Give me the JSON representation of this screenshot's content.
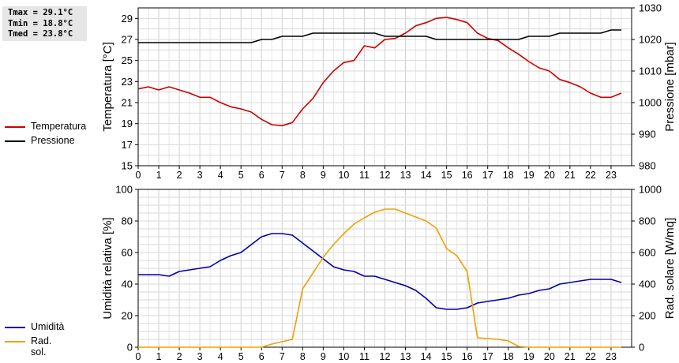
{
  "stats": {
    "tmax": "Tmax = 29.1°C",
    "tmin": "Tmin = 18.8°C",
    "tmed": "Tmed = 23.8°C"
  },
  "colors": {
    "temperatura": "#cc0000",
    "pressione": "#000000",
    "umidita": "#0000aa",
    "radsol": "#f0a000"
  },
  "legends": {
    "top": [
      {
        "label": "Temperatura",
        "color": "#cc0000"
      },
      {
        "label": "Pressione",
        "color": "#000000"
      }
    ],
    "bottom": [
      {
        "label": "Umidità",
        "color": "#0000aa"
      },
      {
        "label": "Rad. sol.",
        "color": "#f0a000"
      }
    ]
  },
  "chart_data": [
    {
      "type": "line",
      "ylabel": "Temperatura [°C]",
      "y2label": "Pressione [mbar]",
      "xlim": [
        0,
        24
      ],
      "ylim": [
        15,
        30
      ],
      "y2lim": [
        980,
        1030
      ],
      "xticks": [
        "0",
        "1",
        "2",
        "3",
        "4",
        "5",
        "6",
        "7",
        "8",
        "9",
        "10",
        "11",
        "12",
        "13",
        "14",
        "15",
        "16",
        "17",
        "18",
        "19",
        "20",
        "21",
        "22",
        "23"
      ],
      "yticks": [
        "15",
        "17",
        "19",
        "21",
        "23",
        "25",
        "27",
        "29"
      ],
      "y2ticks": [
        "980",
        "990",
        "1000",
        "1010",
        "1020",
        "1030"
      ],
      "grid": true,
      "legend": "left",
      "series": [
        {
          "name": "Temperatura",
          "axis": "left",
          "color": "#cc0000",
          "x": [
            0,
            0.5,
            1,
            1.5,
            2,
            2.5,
            3,
            3.5,
            4,
            4.5,
            5,
            5.5,
            6,
            6.5,
            7,
            7.5,
            8,
            8.5,
            9,
            9.5,
            10,
            10.5,
            11,
            11.5,
            12,
            12.5,
            13,
            13.5,
            14,
            14.5,
            15,
            15.5,
            16,
            16.5,
            17,
            17.5,
            18,
            18.5,
            19,
            19.5,
            20,
            20.5,
            21,
            21.5,
            22,
            22.5,
            23,
            23.5
          ],
          "values": [
            22.3,
            22.5,
            22.2,
            22.5,
            22.2,
            21.9,
            21.5,
            21.5,
            21.0,
            20.6,
            20.4,
            20.1,
            19.4,
            18.9,
            18.8,
            19.1,
            20.4,
            21.4,
            22.9,
            24.0,
            24.8,
            25.0,
            26.4,
            26.2,
            27.0,
            27.1,
            27.6,
            28.3,
            28.6,
            29.0,
            29.1,
            28.9,
            28.6,
            27.6,
            27.1,
            26.9,
            26.2,
            25.6,
            24.9,
            24.3,
            24.0,
            23.2,
            22.9,
            22.5,
            21.9,
            21.5,
            21.5,
            21.9
          ]
        },
        {
          "name": "Pressione",
          "axis": "right",
          "color": "#000000",
          "x": [
            0,
            0.5,
            1,
            1.5,
            2,
            2.5,
            3,
            3.5,
            4,
            4.5,
            5,
            5.5,
            6,
            6.5,
            7,
            7.5,
            8,
            8.5,
            9,
            9.5,
            10,
            10.5,
            11,
            11.5,
            12,
            12.5,
            13,
            13.5,
            14,
            14.5,
            15,
            15.5,
            16,
            16.5,
            17,
            17.5,
            18,
            18.5,
            19,
            19.5,
            20,
            20.5,
            21,
            21.5,
            22,
            22.5,
            23,
            23.5
          ],
          "values": [
            1019,
            1019,
            1019,
            1019,
            1019,
            1019,
            1019,
            1019,
            1019,
            1019,
            1019,
            1019,
            1020,
            1020,
            1021,
            1021,
            1021,
            1022,
            1022,
            1022,
            1022,
            1022,
            1022,
            1022,
            1021,
            1021,
            1021,
            1021,
            1021,
            1020,
            1020,
            1020,
            1020,
            1020,
            1020,
            1020,
            1020,
            1020,
            1021,
            1021,
            1021,
            1022,
            1022,
            1022,
            1022,
            1022,
            1023,
            1023
          ]
        }
      ]
    },
    {
      "type": "line",
      "ylabel": "Umidità relativa [%]",
      "y2label": "Rad. solare [W/mq]",
      "xlim": [
        0,
        24
      ],
      "ylim": [
        0,
        100
      ],
      "y2lim": [
        0,
        1000
      ],
      "xticks": [
        "0",
        "1",
        "2",
        "3",
        "4",
        "5",
        "6",
        "7",
        "8",
        "9",
        "10",
        "11",
        "12",
        "13",
        "14",
        "15",
        "16",
        "17",
        "18",
        "19",
        "20",
        "21",
        "22",
        "23"
      ],
      "yticks": [
        "0",
        "20",
        "40",
        "60",
        "80",
        "100"
      ],
      "y2ticks": [
        "0",
        "200",
        "400",
        "600",
        "800",
        "1000"
      ],
      "grid": true,
      "legend": "left",
      "series": [
        {
          "name": "Umidità",
          "axis": "left",
          "color": "#0000aa",
          "x": [
            0,
            0.5,
            1,
            1.5,
            2,
            2.5,
            3,
            3.5,
            4,
            4.5,
            5,
            5.5,
            6,
            6.5,
            7,
            7.5,
            8,
            8.5,
            9,
            9.5,
            10,
            10.5,
            11,
            11.5,
            12,
            12.5,
            13,
            13.5,
            14,
            14.5,
            15,
            15.5,
            16,
            16.5,
            17,
            17.5,
            18,
            18.5,
            19,
            19.5,
            20,
            20.5,
            21,
            21.5,
            22,
            22.5,
            23,
            23.5
          ],
          "values": [
            46,
            46,
            46,
            45,
            48,
            49,
            50,
            51,
            55,
            58,
            60,
            65,
            70,
            72,
            72,
            71,
            66,
            61,
            56,
            51,
            49,
            48,
            45,
            45,
            43,
            41,
            39,
            36,
            31,
            25,
            24,
            24,
            25,
            28,
            29,
            30,
            31,
            33,
            34,
            36,
            37,
            40,
            41,
            42,
            43,
            43,
            43,
            41
          ]
        },
        {
          "name": "Rad. sol.",
          "axis": "right",
          "color": "#f0a000",
          "x": [
            0,
            1,
            2,
            3,
            4,
            5,
            6,
            6.5,
            7,
            7.5,
            8,
            8.5,
            9,
            9.5,
            10,
            10.5,
            11,
            11.5,
            12,
            12.5,
            13,
            13.5,
            14,
            14.5,
            15,
            15.5,
            16,
            16.5,
            17,
            17.5,
            18,
            18.5,
            19,
            20,
            21,
            22,
            23,
            23.5
          ],
          "values": [
            0,
            0,
            0,
            0,
            0,
            0,
            0,
            20,
            35,
            50,
            370,
            470,
            570,
            650,
            720,
            780,
            820,
            855,
            875,
            875,
            850,
            825,
            800,
            755,
            625,
            580,
            480,
            60,
            55,
            50,
            40,
            5,
            0,
            0,
            0,
            0,
            0,
            0
          ]
        }
      ]
    }
  ]
}
